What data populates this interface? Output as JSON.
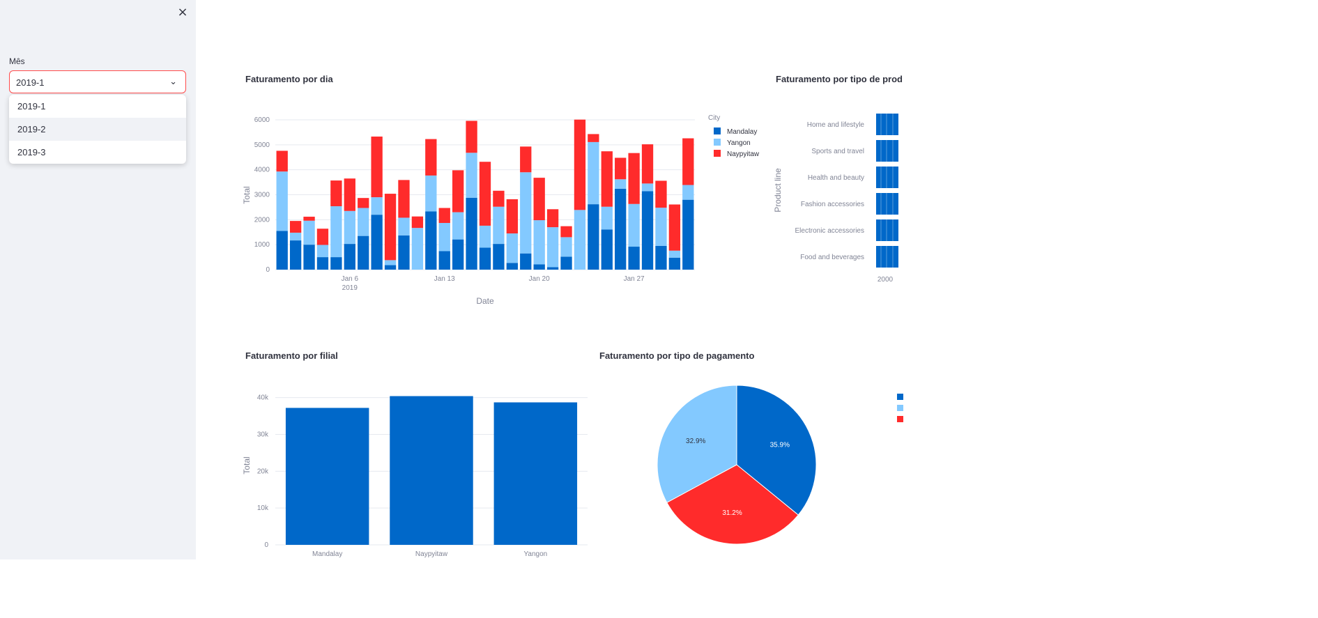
{
  "sidebar": {
    "close_label": "×",
    "select_label": "Mês",
    "selected_value": "2019-1",
    "options": [
      "2019-1",
      "2019-2",
      "2019-3"
    ]
  },
  "colors": {
    "mandalay": "#0068c9",
    "yangon": "#83c9ff",
    "naypyitaw": "#ff2b2b",
    "grid": "#e6e9ef",
    "axis_text": "#808495"
  },
  "chart_data": [
    {
      "type": "bar",
      "stacked": true,
      "title": "Faturamento por dia",
      "xlabel": "Date",
      "ylabel": "Total",
      "ylim": [
        0,
        6000
      ],
      "yticks": [
        0,
        1000,
        2000,
        3000,
        4000,
        5000,
        6000
      ],
      "yticklabels": [
        "0",
        "1000",
        "2000",
        "3000",
        "4000",
        "5000",
        "6000"
      ],
      "xticks": [
        {
          "day": 6,
          "label": "Jan 6",
          "sublabel": "2019"
        },
        {
          "day": 13,
          "label": "Jan 13",
          "sublabel": ""
        },
        {
          "day": 20,
          "label": "Jan 20",
          "sublabel": ""
        },
        {
          "day": 27,
          "label": "Jan 27",
          "sublabel": ""
        }
      ],
      "legend_title": "City",
      "legend_position": "right",
      "days": [
        1,
        2,
        3,
        4,
        5,
        6,
        7,
        8,
        9,
        10,
        11,
        12,
        13,
        14,
        15,
        16,
        17,
        18,
        19,
        20,
        21,
        22,
        23,
        24,
        25,
        26,
        27,
        28,
        29,
        30,
        31
      ],
      "series": [
        {
          "name": "Mandalay",
          "values": [
            1550,
            1170,
            1000,
            500,
            500,
            1030,
            1350,
            2200,
            180,
            1370,
            0,
            2330,
            740,
            1210,
            2880,
            880,
            1030,
            270,
            650,
            210,
            100,
            520,
            0,
            2620,
            1610,
            3240,
            920,
            3140,
            950,
            480,
            2800
          ]
        },
        {
          "name": "Yangon",
          "values": [
            2380,
            310,
            960,
            490,
            2040,
            1320,
            1120,
            700,
            200,
            710,
            1670,
            1440,
            1130,
            1090,
            1800,
            880,
            1490,
            1180,
            3250,
            1770,
            1600,
            780,
            2390,
            2490,
            910,
            380,
            1710,
            310,
            1530,
            280,
            590
          ]
        },
        {
          "name": "Naypyitaw",
          "values": [
            830,
            470,
            160,
            650,
            1030,
            1300,
            400,
            2430,
            2660,
            1510,
            460,
            1460,
            600,
            1680,
            1280,
            2560,
            640,
            1370,
            1030,
            1700,
            720,
            440,
            3620,
            320,
            2220,
            860,
            2040,
            1570,
            1080,
            1850,
            1870
          ]
        }
      ]
    },
    {
      "type": "bar",
      "orientation": "horizontal",
      "title": "Faturamento por tipo de prod",
      "ylabel": "Product line",
      "categories": [
        "Home and lifestyle",
        "Sports and travel",
        "Health and beauty",
        "Fashion accessories",
        "Electronic accessories",
        "Food and beverages"
      ],
      "xtick_label": "2000"
    },
    {
      "type": "bar",
      "title": "Faturamento por filial",
      "ylabel": "Total",
      "categories": [
        "Mandalay",
        "Naypyitaw",
        "Yangon"
      ],
      "values": [
        37200,
        40400,
        38700
      ],
      "ylim": [
        0,
        40500
      ],
      "yticks": [
        0,
        10000,
        20000,
        30000,
        40000
      ],
      "yticklabels": [
        "0",
        "10k",
        "20k",
        "30k",
        "40k"
      ]
    },
    {
      "type": "pie",
      "title": "Faturamento por tipo de pagamento",
      "slices": [
        {
          "label": "35.9%",
          "value": 35.9
        },
        {
          "label": "31.2%",
          "value": 31.2
        },
        {
          "label": "32.9%",
          "value": 32.9
        }
      ],
      "legend_position": "right"
    }
  ]
}
